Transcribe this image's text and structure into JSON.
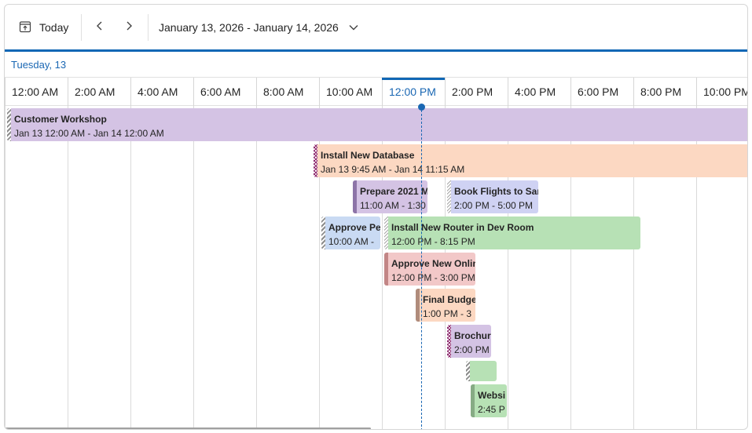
{
  "toolbar": {
    "today_label": "Today",
    "date_range": "January 13, 2026 - January 14, 2026"
  },
  "day_header": "Tuesday, 13",
  "time_slots": [
    "12:00 AM",
    "2:00 AM",
    "4:00 AM",
    "6:00 AM",
    "8:00 AM",
    "10:00 AM",
    "12:00 PM",
    "2:00 PM",
    "4:00 PM",
    "6:00 PM",
    "8:00 PM",
    "10:00 PM"
  ],
  "current_slot": "12:00 PM",
  "events": [
    {
      "title": "Customer Workshop",
      "time": "Jan 13 12:00 AM - Jan 14 12:00 AM"
    },
    {
      "title": "Install New Database",
      "time": "Jan 13 9:45 AM - Jan 14 11:15 AM"
    },
    {
      "title": "Prepare 2021 M",
      "time": "11:00 AM - 1:30"
    },
    {
      "title": "Book Flights to San",
      "time": "2:00 PM - 5:00 PM"
    },
    {
      "title": "Approve Pe",
      "time": "10:00 AM -"
    },
    {
      "title": "Install New Router in Dev Room",
      "time": "12:00 PM - 8:15 PM"
    },
    {
      "title": "Approve New Onlin",
      "time": "12:00 PM - 3:00 PM"
    },
    {
      "title": "Final Budge",
      "time": "1:00 PM - 3"
    },
    {
      "title": "Brochur",
      "time": "2:00 PM"
    },
    {
      "title": "",
      "time": ""
    },
    {
      "title": "Websi",
      "time": "2:45 P"
    }
  ],
  "colors": {
    "accent": "#1067b5",
    "workshop": "#d4c3e4",
    "database": "#fcd8c2",
    "flights": "#cfd2f3",
    "approve_pe": "#c9daf3",
    "router": "#b7e1b5",
    "approve_online": "#f2c8c8"
  },
  "icons": [
    "calendar-today-icon",
    "chevron-left-icon",
    "chevron-right-icon",
    "chevron-down-icon"
  ]
}
